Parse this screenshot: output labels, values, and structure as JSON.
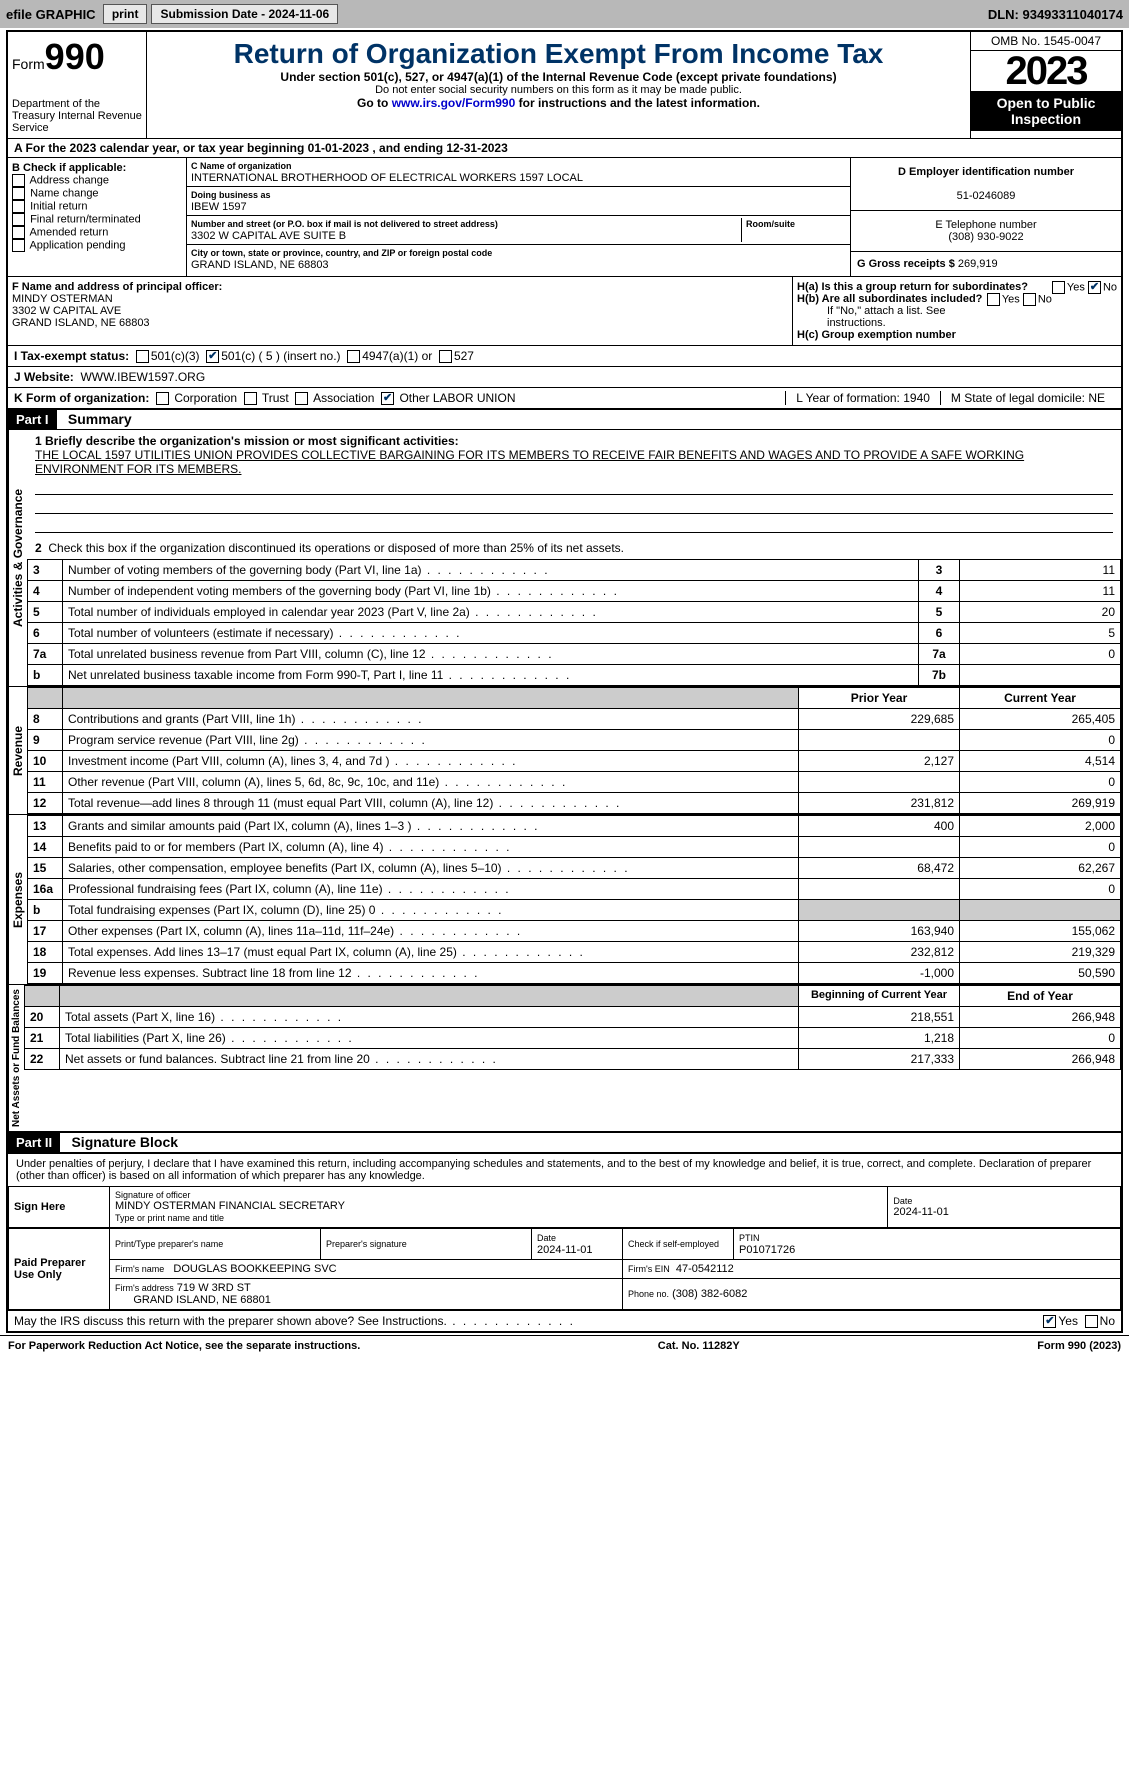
{
  "topbar": {
    "efile": "efile GRAPHIC",
    "print": "print",
    "submission": "Submission Date - 2024-11-06",
    "dln": "DLN: 93493311040174"
  },
  "header": {
    "form_prefix": "Form",
    "form_num": "990",
    "dept": "Department of the Treasury Internal Revenue Service",
    "title": "Return of Organization Exempt From Income Tax",
    "sub1": "Under section 501(c), 527, or 4947(a)(1) of the Internal Revenue Code (except private foundations)",
    "sub2": "Do not enter social security numbers on this form as it may be made public.",
    "sub3_prefix": "Go to ",
    "sub3_link": "www.irs.gov/Form990",
    "sub3_suffix": " for instructions and the latest information.",
    "omb": "OMB No. 1545-0047",
    "year": "2023",
    "inspect": "Open to Public Inspection"
  },
  "row_a": "A For the 2023 calendar year, or tax year beginning 01-01-2023    , and ending 12-31-2023",
  "col_b": {
    "title": "B Check if applicable:",
    "items": [
      "Address change",
      "Name change",
      "Initial return",
      "Final return/terminated",
      "Amended return",
      "Application pending"
    ]
  },
  "col_c": {
    "name_lbl": "C Name of organization",
    "name": "INTERNATIONAL BROTHERHOOD OF ELECTRICAL WORKERS 1597 LOCAL",
    "dba_lbl": "Doing business as",
    "dba": "IBEW 1597",
    "addr_lbl": "Number and street (or P.O. box if mail is not delivered to street address)",
    "addr": "3302 W CAPITAL AVE SUITE B",
    "suite_lbl": "Room/suite",
    "city_lbl": "City or town, state or province, country, and ZIP or foreign postal code",
    "city": "GRAND ISLAND, NE  68803"
  },
  "col_de": {
    "ein_lbl": "D Employer identification number",
    "ein": "51-0246089",
    "tel_lbl": "E Telephone number",
    "tel": "(308) 930-9022",
    "gross_lbl": "G Gross receipts $",
    "gross": "269,919"
  },
  "row_f": {
    "lbl": "F  Name and address of principal officer:",
    "name": "MINDY OSTERMAN",
    "addr1": "3302 W CAPITAL AVE",
    "addr2": "GRAND ISLAND, NE  68803",
    "ha": "H(a)  Is this a group return for subordinates?",
    "hb": "H(b)  Are all subordinates included?",
    "hb_note": "If \"No,\" attach a list. See instructions.",
    "hc": "H(c)  Group exemption number",
    "yes": "Yes",
    "no": "No"
  },
  "row_i": {
    "lbl": "I   Tax-exempt status:",
    "opts": [
      "501(c)(3)",
      "501(c) ( 5 ) (insert no.)",
      "4947(a)(1) or",
      "527"
    ]
  },
  "row_j": {
    "lbl": "J   Website:",
    "val": "WWW.IBEW1597.ORG"
  },
  "row_k": {
    "lbl": "K Form of organization:",
    "opts": [
      "Corporation",
      "Trust",
      "Association",
      "Other"
    ],
    "other_val": "LABOR UNION",
    "l": "L Year of formation: 1940",
    "m": "M State of legal domicile: NE"
  },
  "part1": {
    "label": "Part I",
    "title": "Summary"
  },
  "mission": {
    "q": "1   Briefly describe the organization's mission or most significant activities:",
    "a": "THE LOCAL 1597 UTILITIES UNION PROVIDES COLLECTIVE BARGAINING FOR ITS MEMBERS TO RECEIVE FAIR BENEFITS AND WAGES AND TO PROVIDE A SAFE WORKING ENVIRONMENT FOR ITS MEMBERS."
  },
  "gov": {
    "side": "Activities & Governance",
    "l2": "Check this box       if the organization discontinued its operations or disposed of more than 25% of its net assets.",
    "rows": [
      {
        "n": "3",
        "t": "Number of voting members of the governing body (Part VI, line 1a)",
        "rb": "3",
        "v": "11"
      },
      {
        "n": "4",
        "t": "Number of independent voting members of the governing body (Part VI, line 1b)",
        "rb": "4",
        "v": "11"
      },
      {
        "n": "5",
        "t": "Total number of individuals employed in calendar year 2023 (Part V, line 2a)",
        "rb": "5",
        "v": "20"
      },
      {
        "n": "6",
        "t": "Total number of volunteers (estimate if necessary)",
        "rb": "6",
        "v": "5"
      },
      {
        "n": "7a",
        "t": "Total unrelated business revenue from Part VIII, column (C), line 12",
        "rb": "7a",
        "v": "0"
      },
      {
        "n": " b",
        "t": "Net unrelated business taxable income from Form 990-T, Part I, line 11",
        "rb": "7b",
        "v": ""
      }
    ]
  },
  "cols_hdr": {
    "prior": "Prior Year",
    "current": "Current Year"
  },
  "rev": {
    "side": "Revenue",
    "rows": [
      {
        "n": "8",
        "t": "Contributions and grants (Part VIII, line 1h)",
        "p": "229,685",
        "c": "265,405"
      },
      {
        "n": "9",
        "t": "Program service revenue (Part VIII, line 2g)",
        "p": "",
        "c": "0"
      },
      {
        "n": "10",
        "t": "Investment income (Part VIII, column (A), lines 3, 4, and 7d )",
        "p": "2,127",
        "c": "4,514"
      },
      {
        "n": "11",
        "t": "Other revenue (Part VIII, column (A), lines 5, 6d, 8c, 9c, 10c, and 11e)",
        "p": "",
        "c": "0"
      },
      {
        "n": "12",
        "t": "Total revenue—add lines 8 through 11 (must equal Part VIII, column (A), line 12)",
        "p": "231,812",
        "c": "269,919"
      }
    ]
  },
  "exp": {
    "side": "Expenses",
    "rows": [
      {
        "n": "13",
        "t": "Grants and similar amounts paid (Part IX, column (A), lines 1–3 )",
        "p": "400",
        "c": "2,000"
      },
      {
        "n": "14",
        "t": "Benefits paid to or for members (Part IX, column (A), line 4)",
        "p": "",
        "c": "0"
      },
      {
        "n": "15",
        "t": "Salaries, other compensation, employee benefits (Part IX, column (A), lines 5–10)",
        "p": "68,472",
        "c": "62,267"
      },
      {
        "n": "16a",
        "t": "Professional fundraising fees (Part IX, column (A), line 11e)",
        "p": "",
        "c": "0"
      },
      {
        "n": "  b",
        "t": "Total fundraising expenses (Part IX, column (D), line 25) 0",
        "p": "grey",
        "c": "grey"
      },
      {
        "n": "17",
        "t": "Other expenses (Part IX, column (A), lines 11a–11d, 11f–24e)",
        "p": "163,940",
        "c": "155,062"
      },
      {
        "n": "18",
        "t": "Total expenses. Add lines 13–17 (must equal Part IX, column (A), line 25)",
        "p": "232,812",
        "c": "219,329"
      },
      {
        "n": "19",
        "t": "Revenue less expenses. Subtract line 18 from line 12",
        "p": "-1,000",
        "c": "50,590"
      }
    ]
  },
  "cols_hdr2": {
    "prior": "Beginning of Current Year",
    "current": "End of Year"
  },
  "net": {
    "side": "Net Assets or Fund Balances",
    "rows": [
      {
        "n": "20",
        "t": "Total assets (Part X, line 16)",
        "p": "218,551",
        "c": "266,948"
      },
      {
        "n": "21",
        "t": "Total liabilities (Part X, line 26)",
        "p": "1,218",
        "c": "0"
      },
      {
        "n": "22",
        "t": "Net assets or fund balances. Subtract line 21 from line 20",
        "p": "217,333",
        "c": "266,948"
      }
    ]
  },
  "part2": {
    "label": "Part II",
    "title": "Signature Block"
  },
  "sig_decl": "Under penalties of perjury, I declare that I have examined this return, including accompanying schedules and statements, and to the best of my knowledge and belief, it is true, correct, and complete. Declaration of preparer (other than officer) is based on all information of which preparer has any knowledge.",
  "sign_here": {
    "side": "Sign Here",
    "sig_lbl": "Signature of officer",
    "name": "MINDY OSTERMAN  FINANCIAL SECRETARY",
    "title_lbl": "Type or print name and title",
    "date_lbl": "Date",
    "date": "2024-11-01"
  },
  "paid": {
    "side": "Paid Preparer Use Only",
    "prep_lbl": "Print/Type preparer's name",
    "sig_lbl": "Preparer's signature",
    "date_lbl": "Date",
    "date": "2024-11-01",
    "check_lbl": "Check        if self-employed",
    "ptin_lbl": "PTIN",
    "ptin": "P01071726",
    "firm_lbl": "Firm's name",
    "firm": "DOUGLAS BOOKKEEPING SVC",
    "ein_lbl": "Firm's EIN",
    "ein": "47-0542112",
    "addr_lbl": "Firm's address",
    "addr": "719 W 3RD ST",
    "city": "GRAND ISLAND, NE  68801",
    "phone_lbl": "Phone no.",
    "phone": "(308) 382-6082"
  },
  "discuss": "May the IRS discuss this return with the preparer shown above? See Instructions.",
  "footer": {
    "l": "For Paperwork Reduction Act Notice, see the separate instructions.",
    "m": "Cat. No. 11282Y",
    "r": "Form 990 (2023)"
  }
}
